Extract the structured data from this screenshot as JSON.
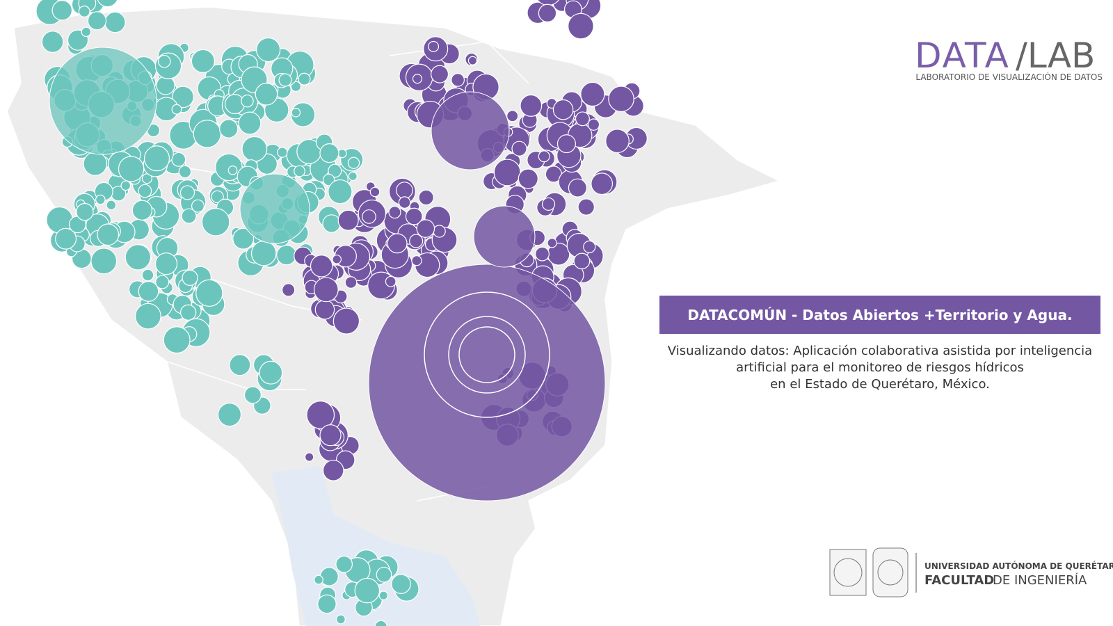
{
  "logo": {
    "data": "DATA",
    "lab": "/LAB",
    "subtitle": "LABORATORIO DE VISUALIZACIÓN DE DATOS"
  },
  "banner": {
    "title": "DATACOMÚN - Datos Abiertos +Territorio y Agua."
  },
  "description": {
    "lines": [
      "Visualizando datos: Aplicación colaborativa asistida por inteligencia",
      "artificial para el monitoreo de riesgos hídricos",
      "en el Estado de Querétaro, México."
    ]
  },
  "footer": {
    "university": "UNIVERSIDAD AUTÓNOMA DE QUERÉTARO",
    "faculty_bold": "FACULTAD",
    "faculty_rest": "DE INGENIERÍA"
  }
}
